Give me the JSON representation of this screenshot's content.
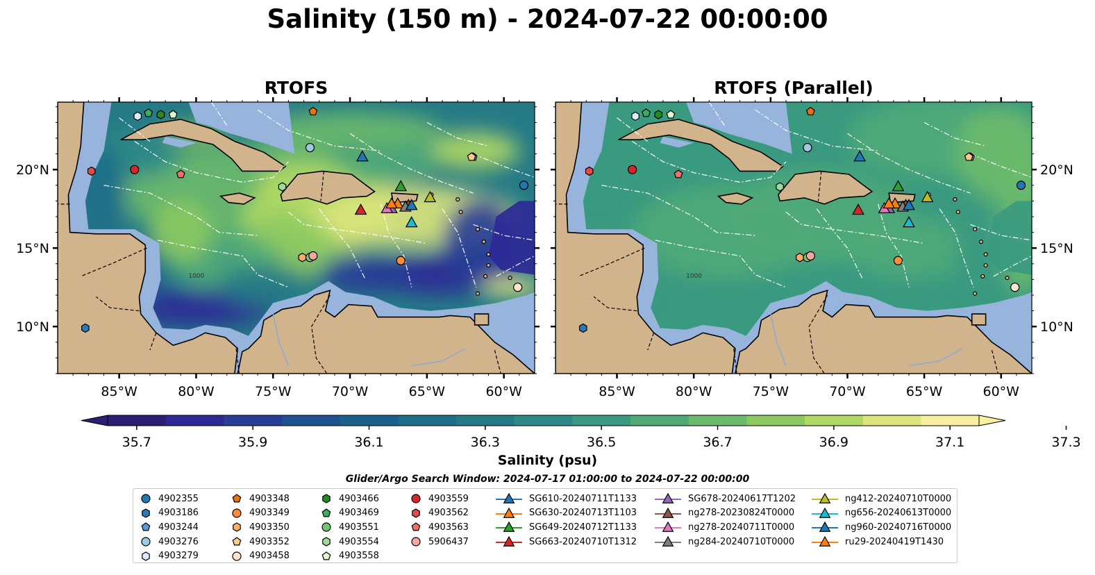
{
  "title": "Salinity (150 m) - 2024-07-22 00:00:00",
  "panels": [
    {
      "title": "RTOFS",
      "variant": "main"
    },
    {
      "title": "RTOFS (Parallel)",
      "variant": "parallel"
    }
  ],
  "map": {
    "lon_range": [
      -89,
      -58
    ],
    "lat_range": [
      7,
      24.3
    ],
    "lon_ticks": [
      -85,
      -80,
      -75,
      -70,
      -65,
      -60
    ],
    "lon_tick_labels": [
      "85°W",
      "80°W",
      "75°W",
      "70°W",
      "65°W",
      "60°W"
    ],
    "lat_ticks": [
      10,
      15,
      20
    ],
    "lat_tick_labels": [
      "10°N",
      "15°N",
      "20°N"
    ],
    "contour_label": "1000",
    "land_color": "#d2b48c",
    "shallow_color": "#96b4dc"
  },
  "colorbar": {
    "label": "Salinity (psu)",
    "min": 35.7,
    "max": 37.3,
    "step": 0.1,
    "tick_values": [
      35.7,
      35.9,
      36.1,
      36.3,
      36.5,
      36.7,
      36.9,
      37.1,
      37.3
    ],
    "tick_labels": [
      "35.7",
      "35.9",
      "36.1",
      "36.3",
      "36.5",
      "36.7",
      "36.9",
      "37.1",
      "37.3"
    ],
    "colors": [
      "#2a1f72",
      "#2c2896",
      "#283d96",
      "#1e5292",
      "#1a608c",
      "#1c6e88",
      "#257a86",
      "#2e8a86",
      "#3a9a80",
      "#50aa78",
      "#6cba6c",
      "#8cca60",
      "#b0d864",
      "#dce47c",
      "#f8f0a0"
    ],
    "extend": "both"
  },
  "search_window": "Glider/Argo Search Window: 2024-07-17 01:00:00 to 2024-07-22 00:00:00",
  "legend": {
    "columns": [
      [
        {
          "label": "4902355",
          "marker": "circle",
          "color": "#1f77b4"
        },
        {
          "label": "4903186",
          "marker": "hexagon",
          "color": "#2a7ab8"
        },
        {
          "label": "4903244",
          "marker": "pentagon",
          "color": "#5a9bd5"
        },
        {
          "label": "4903276",
          "marker": "circle",
          "color": "#9ecae1"
        },
        {
          "label": "4903279",
          "marker": "hexagon",
          "color": "#deebf7"
        }
      ],
      [
        {
          "label": "4903348",
          "marker": "pentagon",
          "color": "#e6730e"
        },
        {
          "label": "4903349",
          "marker": "circle",
          "color": "#fd8d3c"
        },
        {
          "label": "4903350",
          "marker": "hexagon",
          "color": "#fdae6b"
        },
        {
          "label": "4903352",
          "marker": "pentagon",
          "color": "#fdc790"
        },
        {
          "label": "4903458",
          "marker": "circle",
          "color": "#fee6ce"
        }
      ],
      [
        {
          "label": "4903466",
          "marker": "hexagon",
          "color": "#238b22"
        },
        {
          "label": "4903469",
          "marker": "pentagon",
          "color": "#41ab5d"
        },
        {
          "label": "4903551",
          "marker": "circle",
          "color": "#74c476"
        },
        {
          "label": "4903554",
          "marker": "hexagon",
          "color": "#a1d99b"
        },
        {
          "label": "4903558",
          "marker": "pentagon",
          "color": "#dff5d0"
        }
      ],
      [
        {
          "label": "4903559",
          "marker": "circle",
          "color": "#d62728"
        },
        {
          "label": "4903562",
          "marker": "hexagon",
          "color": "#e34a4a"
        },
        {
          "label": "4903563",
          "marker": "pentagon",
          "color": "#f07070"
        },
        {
          "label": "5906437",
          "marker": "circle",
          "color": "#f4a6a0"
        }
      ],
      [
        {
          "label": "SG610-20240711T1133",
          "marker": "triangle",
          "color": "#1f77b4"
        },
        {
          "label": "SG630-20240713T1103",
          "marker": "triangle",
          "color": "#ff7f0e"
        },
        {
          "label": "SG649-20240712T1133",
          "marker": "triangle",
          "color": "#2ca02c"
        },
        {
          "label": "SG663-20240710T1312",
          "marker": "triangle",
          "color": "#d62728"
        }
      ],
      [
        {
          "label": "SG678-20240617T1202",
          "marker": "triangle",
          "color": "#9467bd"
        },
        {
          "label": "ng278-20230824T0000",
          "marker": "triangle",
          "color": "#8c564b"
        },
        {
          "label": "ng278-20240711T0000",
          "marker": "triangle",
          "color": "#e377c2"
        },
        {
          "label": "ng284-20240710T0000",
          "marker": "triangle",
          "color": "#7f7f7f"
        }
      ],
      [
        {
          "label": "ng412-20240710T0000",
          "marker": "triangle",
          "color": "#bcbd22"
        },
        {
          "label": "ng656-20240613T0000",
          "marker": "triangle",
          "color": "#17becf"
        },
        {
          "label": "ng960-20240716T0000",
          "marker": "triangle",
          "color": "#1f77b4"
        },
        {
          "label": "ru29-20240419T1430",
          "marker": "triangle",
          "color": "#ff7f0e"
        }
      ]
    ]
  },
  "observations": [
    {
      "id": "4902355",
      "lon": -58.7,
      "lat": 19.0
    },
    {
      "id": "4903186",
      "lon": -87.2,
      "lat": 9.9
    },
    {
      "id": "4903244",
      "lon": -62.0,
      "lat": 20.8
    },
    {
      "id": "4903276",
      "lon": -72.6,
      "lat": 21.4
    },
    {
      "id": "4903279",
      "lon": -83.8,
      "lat": 23.4
    },
    {
      "id": "4903348",
      "lon": -72.4,
      "lat": 23.7
    },
    {
      "id": "4903349",
      "lon": -66.7,
      "lat": 14.2
    },
    {
      "id": "4903350",
      "lon": -73.1,
      "lat": 14.4
    },
    {
      "id": "4903352",
      "lon": -62.1,
      "lat": 20.8
    },
    {
      "id": "4903458",
      "lon": -59.1,
      "lat": 12.5
    },
    {
      "id": "4903466",
      "lon": -82.3,
      "lat": 23.5
    },
    {
      "id": "4903469",
      "lon": -83.1,
      "lat": 23.6
    },
    {
      "id": "4903551",
      "lon": -72.6,
      "lat": 14.4
    },
    {
      "id": "4903554",
      "lon": -74.4,
      "lat": 18.9
    },
    {
      "id": "4903558",
      "lon": -81.5,
      "lat": 23.5
    },
    {
      "id": "4903559",
      "lon": -84.0,
      "lat": 20.0
    },
    {
      "id": "4903562",
      "lon": -86.8,
      "lat": 19.9
    },
    {
      "id": "4903563",
      "lon": -81.0,
      "lat": 19.7
    },
    {
      "id": "5906437",
      "lon": -72.4,
      "lat": 14.5
    },
    {
      "id": "SG610-20240711T1133",
      "lon": -69.2,
      "lat": 20.8
    },
    {
      "id": "SG630-20240713T1103",
      "lon": -66.9,
      "lat": 17.8
    },
    {
      "id": "SG649-20240712T1133",
      "lon": -66.7,
      "lat": 18.9
    },
    {
      "id": "SG663-20240710T1312",
      "lon": -69.3,
      "lat": 17.4
    },
    {
      "id": "SG678-20240617T1202",
      "lon": -67.3,
      "lat": 17.5
    },
    {
      "id": "ng278-20230824T0000",
      "lon": -66.2,
      "lat": 17.7
    },
    {
      "id": "ng278-20240711T0000",
      "lon": -67.6,
      "lat": 17.5
    },
    {
      "id": "ng284-20240710T0000",
      "lon": -66.4,
      "lat": 17.6
    },
    {
      "id": "ng412-20240710T0000",
      "lon": -64.8,
      "lat": 18.2
    },
    {
      "id": "ng656-20240613T0000",
      "lon": -66.0,
      "lat": 16.6
    },
    {
      "id": "ng960-20240716T0000",
      "lon": -66.0,
      "lat": 17.7
    },
    {
      "id": "ru29-20240419T1430",
      "lon": -67.3,
      "lat": 17.8
    }
  ]
}
